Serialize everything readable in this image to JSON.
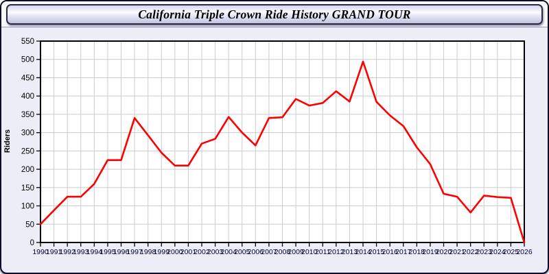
{
  "window": {
    "title": "California Triple Crown Ride History GRAND TOUR"
  },
  "chart_data": {
    "type": "line",
    "title": "California Triple Crown Ride History GRAND TOUR",
    "xlabel": "",
    "ylabel": "Riders",
    "categories": [
      "1990",
      "1991",
      "1992",
      "1993",
      "1994",
      "1995",
      "1996",
      "1997",
      "1998",
      "1999",
      "2000",
      "2001",
      "2002",
      "2003",
      "2004",
      "2005",
      "2006",
      "2007",
      "2008",
      "2009",
      "2010",
      "2011",
      "2012",
      "2013",
      "2014",
      "2015",
      "2016",
      "2017",
      "2018",
      "2019",
      "2020",
      "2021",
      "2022",
      "2023",
      "2024",
      "2025",
      "2026"
    ],
    "series": [
      {
        "name": "Riders",
        "color": "#ff0000",
        "values": [
          50,
          88,
          125,
          125,
          160,
          225,
          225,
          340,
          293,
          245,
          210,
          210,
          270,
          283,
          343,
          300,
          265,
          340,
          342,
          392,
          374,
          381,
          413,
          385,
          494,
          384,
          347,
          318,
          260,
          214,
          133,
          125,
          82,
          128,
          124,
          122,
          0
        ]
      }
    ],
    "ylim": [
      0,
      550
    ],
    "yticks": [
      0,
      50,
      100,
      150,
      200,
      250,
      300,
      350,
      400,
      450,
      500,
      550
    ],
    "grid": true,
    "legend_position": "none",
    "plot_background": "#ffffff",
    "grid_color": "#cccccc",
    "axis_color": "#000000",
    "x_tick_label_color": "#000030",
    "y_tick_label_color": "#000000"
  }
}
